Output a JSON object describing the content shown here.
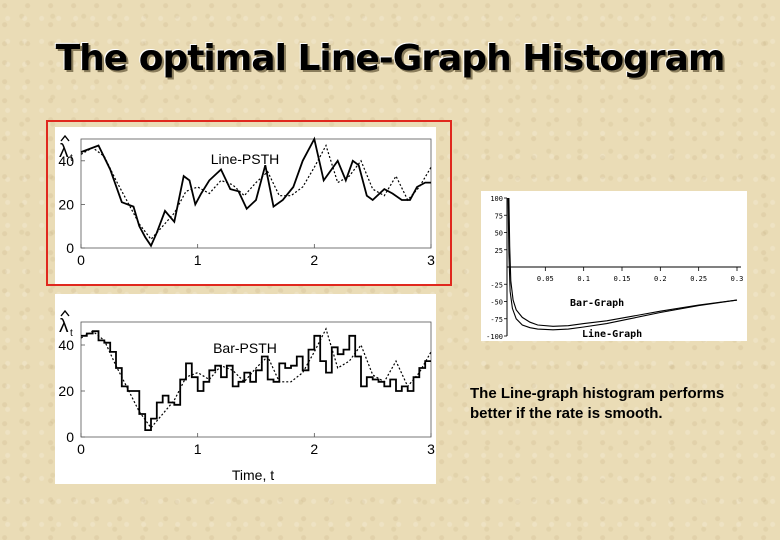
{
  "slide": {
    "title": "The optimal Line-Graph Histogram",
    "caption": "The Line-graph histogram performs better if the rate is smooth."
  },
  "colors": {
    "highlight": "#e0281e",
    "ink": "#000000"
  },
  "chart_data": [
    {
      "type": "line",
      "label": "Line-PSTH",
      "ylabel_symbol": "λ",
      "ylabel_subscript": "t",
      "xlabel": "",
      "xlim": [
        0,
        3
      ],
      "ylim": [
        0,
        50
      ],
      "xticks": [
        0,
        1,
        2,
        3
      ],
      "yticks": [
        0,
        20,
        40
      ],
      "series": [
        {
          "style": "solid",
          "x": [
            0,
            0.15,
            0.25,
            0.35,
            0.45,
            0.5,
            0.55,
            0.6,
            0.65,
            0.72,
            0.8,
            0.88,
            0.93,
            0.98,
            1.03,
            1.1,
            1.2,
            1.28,
            1.35,
            1.42,
            1.5,
            1.58,
            1.65,
            1.73,
            1.82,
            1.9,
            2.0,
            2.08,
            2.2,
            2.27,
            2.33,
            2.38,
            2.45,
            2.5,
            2.6,
            2.67,
            2.75,
            2.82,
            2.88,
            2.95,
            3.0
          ],
          "y": [
            44,
            47,
            36,
            21,
            19,
            10,
            5,
            1,
            7,
            17,
            12,
            33,
            31,
            20,
            25,
            31,
            36,
            27,
            26,
            18,
            22,
            38,
            19,
            22,
            28,
            40,
            50,
            31,
            40,
            31,
            40,
            38,
            24,
            22,
            27,
            25,
            22,
            22,
            28,
            30,
            30
          ]
        },
        {
          "style": "dotted",
          "x": [
            0,
            0.1,
            0.2,
            0.3,
            0.4,
            0.5,
            0.6,
            0.7,
            0.8,
            0.9,
            1.0,
            1.1,
            1.2,
            1.3,
            1.4,
            1.5,
            1.6,
            1.7,
            1.8,
            1.9,
            2.0,
            2.1,
            2.2,
            2.3,
            2.4,
            2.5,
            2.6,
            2.7,
            2.8,
            2.9,
            3.0
          ],
          "y": [
            43,
            46,
            42,
            31,
            21,
            11,
            4,
            10,
            16,
            26,
            28,
            25,
            31,
            29,
            24,
            30,
            35,
            24,
            24,
            28,
            37,
            47,
            30,
            33,
            40,
            27,
            24,
            33,
            22,
            28,
            37
          ]
        }
      ]
    },
    {
      "type": "line",
      "label": "Bar-PSTH",
      "ylabel_symbol": "λ",
      "ylabel_subscript": "t",
      "xlabel": "Time, t",
      "xlim": [
        0,
        3
      ],
      "ylim": [
        0,
        50
      ],
      "xticks": [
        0,
        1,
        2,
        3
      ],
      "yticks": [
        0,
        20,
        40
      ],
      "series": [
        {
          "style": "step",
          "x": [
            0,
            0.05,
            0.1,
            0.15,
            0.2,
            0.25,
            0.3,
            0.35,
            0.4,
            0.45,
            0.5,
            0.55,
            0.6,
            0.65,
            0.7,
            0.75,
            0.8,
            0.85,
            0.9,
            0.95,
            1.0,
            1.05,
            1.1,
            1.15,
            1.2,
            1.25,
            1.3,
            1.35,
            1.4,
            1.45,
            1.5,
            1.55,
            1.6,
            1.65,
            1.7,
            1.75,
            1.8,
            1.85,
            1.9,
            1.95,
            2.0,
            2.05,
            2.1,
            2.15,
            2.2,
            2.25,
            2.3,
            2.35,
            2.4,
            2.45,
            2.5,
            2.55,
            2.6,
            2.65,
            2.7,
            2.75,
            2.8,
            2.85,
            2.9,
            2.95
          ],
          "y": [
            44,
            45,
            46,
            42,
            41,
            37,
            30,
            22,
            20,
            20,
            10,
            3,
            8,
            15,
            18,
            15,
            14,
            25,
            32,
            26,
            20,
            24,
            29,
            31,
            26,
            31,
            22,
            24,
            28,
            24,
            29,
            35,
            25,
            24,
            32,
            30,
            31,
            35,
            29,
            38,
            44,
            33,
            28,
            39,
            36,
            38,
            44,
            35,
            22,
            26,
            25,
            24,
            22,
            25,
            20,
            22,
            20,
            26,
            30,
            33
          ]
        },
        {
          "style": "dotted",
          "x": [
            0,
            0.1,
            0.2,
            0.3,
            0.4,
            0.5,
            0.6,
            0.7,
            0.8,
            0.9,
            1.0,
            1.1,
            1.2,
            1.3,
            1.4,
            1.5,
            1.6,
            1.7,
            1.8,
            1.9,
            2.0,
            2.1,
            2.2,
            2.3,
            2.4,
            2.5,
            2.6,
            2.7,
            2.8,
            2.9,
            3.0
          ],
          "y": [
            43,
            46,
            42,
            31,
            21,
            11,
            4,
            10,
            16,
            26,
            28,
            25,
            31,
            29,
            24,
            30,
            35,
            24,
            24,
            28,
            37,
            47,
            30,
            33,
            40,
            27,
            24,
            33,
            22,
            28,
            37
          ]
        }
      ]
    },
    {
      "type": "line",
      "label": "",
      "xlim": [
        0,
        0.3
      ],
      "ylim": [
        -100,
        100
      ],
      "xtick_labels": [
        "0.05",
        "0.1",
        "0.15",
        "0.2",
        "0.25",
        "0.3"
      ],
      "ytick_labels": [
        "100",
        "75",
        "50",
        "25",
        "-25",
        "-50",
        "-75",
        "-100"
      ],
      "series": [
        {
          "name": "Bar-Graph",
          "x": [
            0.0025,
            0.0035,
            0.005,
            0.008,
            0.012,
            0.02,
            0.03,
            0.04,
            0.06,
            0.08,
            0.1,
            0.13,
            0.16,
            0.2,
            0.25,
            0.3
          ],
          "y": [
            100,
            30,
            -20,
            -48,
            -62,
            -73,
            -80,
            -84,
            -86,
            -85,
            -82,
            -78,
            -72,
            -64,
            -55,
            -48
          ]
        },
        {
          "name": "Line-Graph",
          "x": [
            0.0015,
            0.0025,
            0.004,
            0.007,
            0.012,
            0.02,
            0.03,
            0.04,
            0.06,
            0.08,
            0.1,
            0.13,
            0.16,
            0.2,
            0.25,
            0.3
          ],
          "y": [
            100,
            20,
            -35,
            -60,
            -75,
            -84,
            -88,
            -90,
            -91,
            -90,
            -87,
            -82,
            -75,
            -66,
            -56,
            -48
          ]
        }
      ]
    }
  ]
}
